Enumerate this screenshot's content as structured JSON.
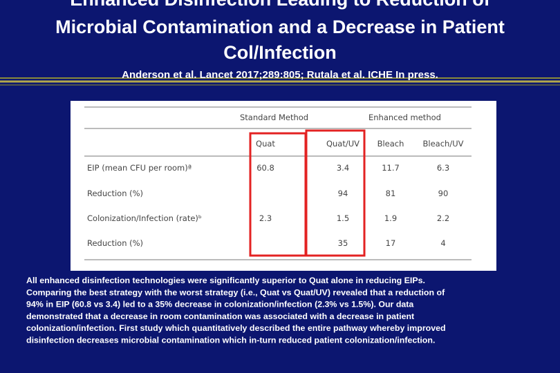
{
  "title": [
    "Enhanced Disinfection Leading to Reduction of",
    "Microbial Contamination and a Decrease in Patient",
    "Col/Infection"
  ],
  "subtitle": "Anderson et al. Lancet 2017;289:805; Rutala et al. ICHE In press.",
  "table": {
    "groups": [
      "Standard Method",
      "Enhanced method"
    ],
    "columns": [
      "Quat",
      "Quat/UV",
      "Bleach",
      "Bleach/UV"
    ],
    "rows": [
      [
        "EIP (mean CFU per room)ª",
        "60.8",
        "3.4",
        "11.7",
        "6.3"
      ],
      [
        "Reduction (%)",
        null,
        "94",
        "81",
        "90"
      ],
      [
        "Colonization/Infection (rate)ᵇ",
        "2.3",
        "1.5",
        "1.9",
        "2.2"
      ],
      [
        "Reduction (%)",
        null,
        "35",
        "17",
        "4"
      ]
    ]
  },
  "body": [
    "All enhanced disinfection technologies were significantly superior to Quat alone in reducing EIPs.",
    "Comparing the best strategy with the worst strategy (i.e., Quat vs Quat/UV) revealed that a reduction of",
    "94% in EIP (60.8 vs 3.4) led to a 35% decrease in colonization/infection (2.3% vs 1.5%). Our data",
    "demonstrated that a decrease in room contamination was associated with a decrease in patient",
    "colonization/infection. First study which quantitatively described the entire pathway whereby improved",
    "disinfection decreases microbial contamination which in-turn reduced patient colonization/infection."
  ]
}
